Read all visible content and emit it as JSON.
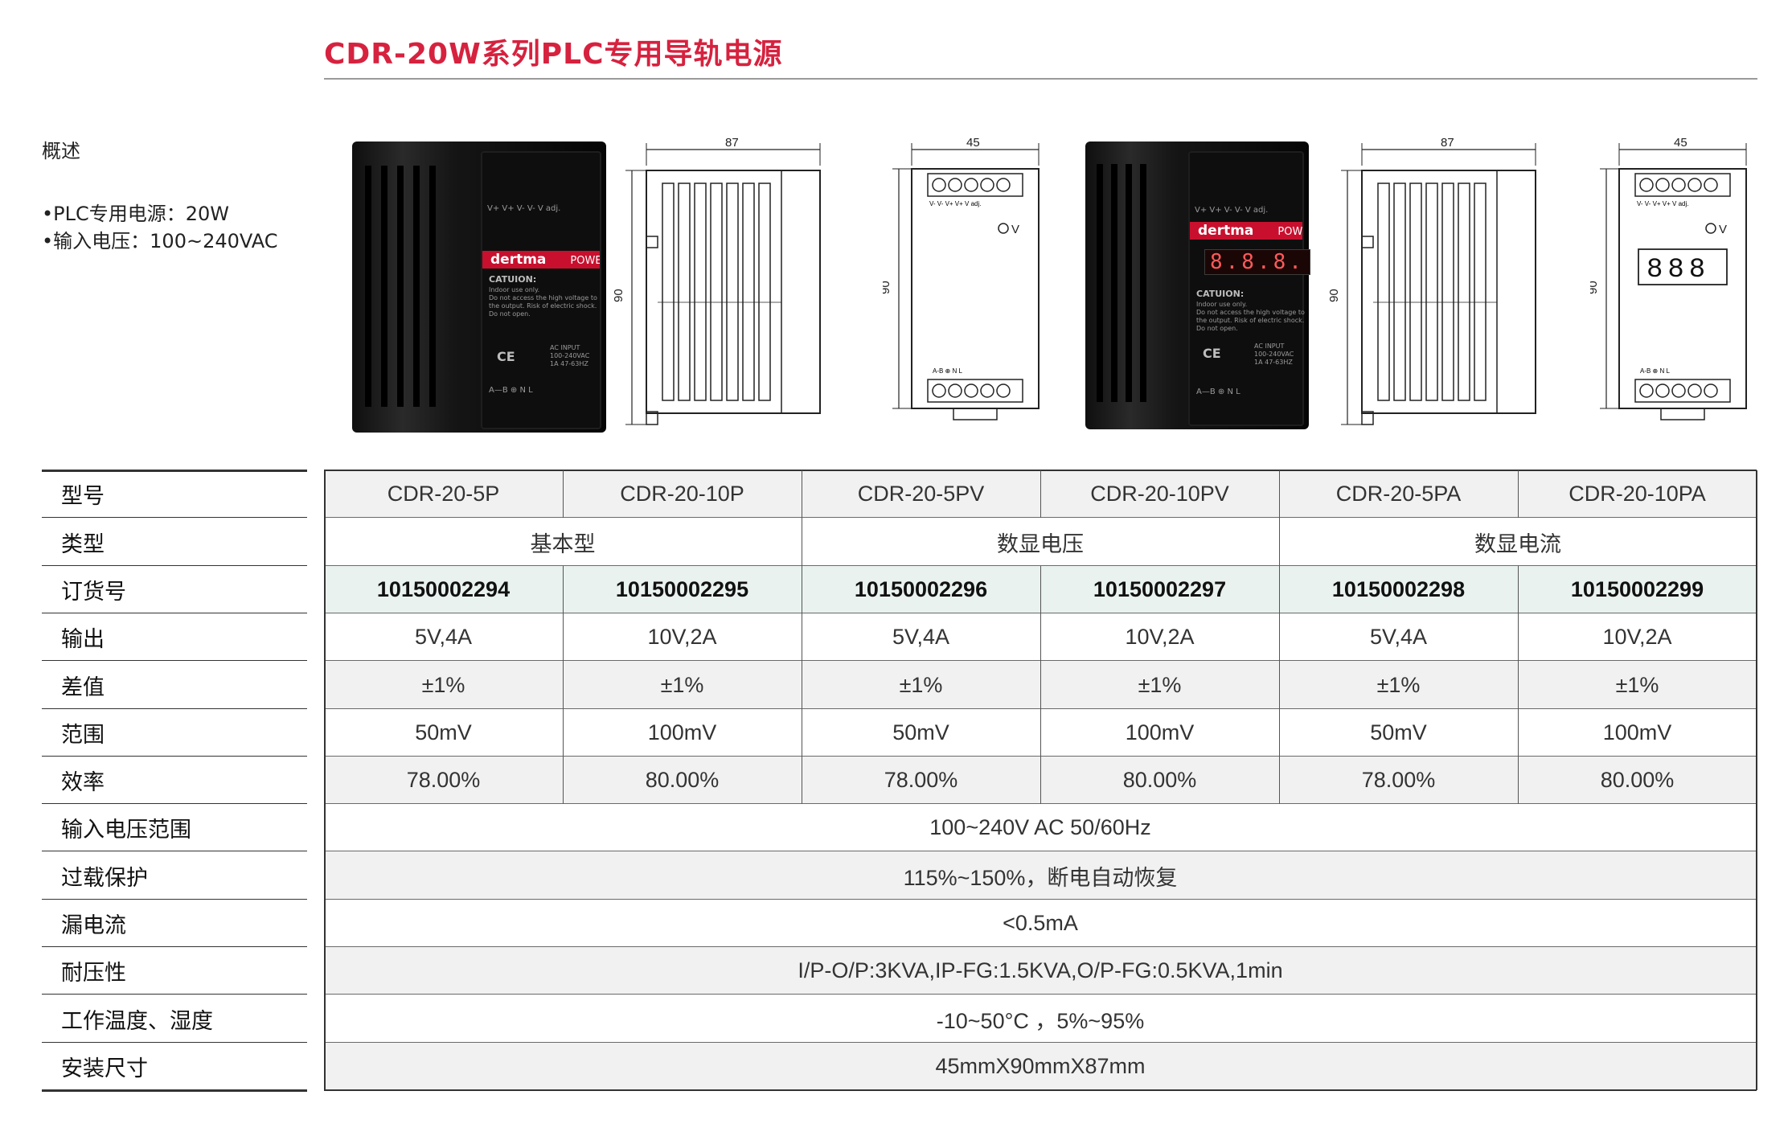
{
  "page": {
    "title": "CDR-20W系列PLC专用导轨电源",
    "overview": {
      "heading": "概述",
      "bullets": [
        "•PLC专用电源：20W",
        "•输入电压：100~240VAC"
      ]
    }
  },
  "products": {
    "photo1": {
      "terminal_top": "V+  V+  V-  V-  V adj.",
      "brand": "dertma",
      "supply": "POWER SUPPLY",
      "caution_title": "CATUION:",
      "caution": [
        "Indoor use only.",
        "Do not access the high voltage to",
        "the output. Risk of electric shock.",
        "Do not open."
      ],
      "ce": "CE",
      "input_title": "AC INPUT",
      "input_lines": [
        "100-240VAC",
        "1A  47-63HZ"
      ],
      "terminal_bottom": "A—B   ⊕   N   L"
    },
    "photo2": {
      "terminal_top": "V+  V+  V-  V-  V adj.",
      "brand": "dertma",
      "supply": "POWER SUPPLY",
      "display": "8.8.8.",
      "caution_title": "CATUION:",
      "caution": [
        "Indoor use only.",
        "Do not access the high voltage to",
        "the output. Risk of electric shock.",
        "Do not open."
      ],
      "ce": "CE",
      "input_title": "AC INPUT",
      "input_lines": [
        "100-240VAC",
        "1A  47-63HZ"
      ],
      "terminal_bottom": "A—B   ⊕   N   L"
    }
  },
  "drawings": {
    "depth": "87",
    "width": "45",
    "height": "90",
    "knob_label": "V",
    "display_digits": "888",
    "top_terms": "V-  V-  V+  V+  V adj.",
    "bottom_terms": "A-B  ⊕  N   L"
  },
  "spec_table": {
    "row_labels": [
      "型号",
      "类型",
      "订货号",
      "输出",
      "差值",
      "范围",
      "效率",
      "输入电压范围",
      "过载保护",
      "漏电流",
      "耐压性",
      "工作温度、湿度",
      "安装尺寸"
    ],
    "models": [
      "CDR-20-5P",
      "CDR-20-10P",
      "CDR-20-5PV",
      "CDR-20-10PV",
      "CDR-20-5PA",
      "CDR-20-10PA"
    ],
    "types": [
      "基本型",
      "数显电压",
      "数显电流"
    ],
    "order_numbers": [
      "10150002294",
      "10150002295",
      "10150002296",
      "10150002297",
      "10150002298",
      "10150002299"
    ],
    "outputs": [
      "5V,4A",
      "10V,2A",
      "5V,4A",
      "10V,2A",
      "5V,4A",
      "10V,2A"
    ],
    "tolerance": [
      "±1%",
      "±1%",
      "±1%",
      "±1%",
      "±1%",
      "±1%"
    ],
    "ripple": [
      "50mV",
      "100mV",
      "50mV",
      "100mV",
      "50mV",
      "100mV"
    ],
    "efficiency": [
      "78.00%",
      "80.00%",
      "78.00%",
      "80.00%",
      "78.00%",
      "80.00%"
    ],
    "input_range": "100~240V AC 50/60Hz",
    "overload": "115%~150%，断电自动恢复",
    "leakage": "<0.5mA",
    "withstand": "I/P-O/P:3KVA,IP-FG:1.5KVA,O/P-FG:0.5KVA,1min",
    "temp_humidity": "-10~50°C ，5%~95%",
    "dimensions": "45mmX90mmX87mm"
  },
  "colors": {
    "accent": "#d6223f",
    "band_grey": "#f1f1f1",
    "band_green": "#e9f2ef"
  }
}
